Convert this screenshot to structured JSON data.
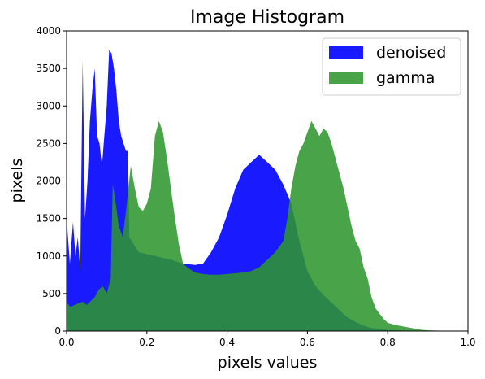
{
  "chart_data": {
    "type": "area",
    "title": "Image Histogram",
    "xlabel": "pixels values",
    "ylabel": "pixels",
    "xlim": [
      0,
      1
    ],
    "ylim": [
      0,
      4000
    ],
    "x_ticks": [
      0.0,
      0.2,
      0.4,
      0.6,
      0.8,
      1.0
    ],
    "x_tick_labels": [
      "0.0",
      "0.2",
      "0.4",
      "0.6",
      "0.8",
      "1.0"
    ],
    "y_ticks": [
      0,
      500,
      1000,
      1500,
      2000,
      2500,
      3000,
      3500,
      4000
    ],
    "y_tick_labels": [
      "0",
      "500",
      "1000",
      "1500",
      "2000",
      "2500",
      "3000",
      "3500",
      "4000"
    ],
    "grid": false,
    "legend": {
      "position": "top-right"
    },
    "series": [
      {
        "name": "denoised",
        "color": "#1a1aff",
        "opacity": 1.0,
        "points": [
          [
            0.0,
            1500
          ],
          [
            0.008,
            900
          ],
          [
            0.016,
            1450
          ],
          [
            0.022,
            1000
          ],
          [
            0.028,
            1250
          ],
          [
            0.034,
            800
          ],
          [
            0.04,
            3600
          ],
          [
            0.046,
            1500
          ],
          [
            0.052,
            2000
          ],
          [
            0.058,
            2800
          ],
          [
            0.064,
            3200
          ],
          [
            0.07,
            3500
          ],
          [
            0.076,
            2600
          ],
          [
            0.082,
            2500
          ],
          [
            0.088,
            2200
          ],
          [
            0.094,
            2600
          ],
          [
            0.1,
            3000
          ],
          [
            0.106,
            3750
          ],
          [
            0.112,
            3700
          ],
          [
            0.118,
            3500
          ],
          [
            0.124,
            3200
          ],
          [
            0.13,
            2800
          ],
          [
            0.136,
            2600
          ],
          [
            0.142,
            2500
          ],
          [
            0.148,
            2400
          ],
          [
            0.153,
            2400
          ],
          [
            0.156,
            1250
          ],
          [
            0.18,
            1050
          ],
          [
            0.22,
            1000
          ],
          [
            0.26,
            950
          ],
          [
            0.29,
            900
          ],
          [
            0.32,
            880
          ],
          [
            0.34,
            900
          ],
          [
            0.36,
            1050
          ],
          [
            0.38,
            1250
          ],
          [
            0.4,
            1550
          ],
          [
            0.42,
            1900
          ],
          [
            0.44,
            2150
          ],
          [
            0.46,
            2250
          ],
          [
            0.48,
            2350
          ],
          [
            0.5,
            2250
          ],
          [
            0.52,
            2150
          ],
          [
            0.54,
            1950
          ],
          [
            0.56,
            1700
          ],
          [
            0.58,
            1200
          ],
          [
            0.6,
            800
          ],
          [
            0.62,
            600
          ],
          [
            0.64,
            480
          ],
          [
            0.66,
            380
          ],
          [
            0.68,
            280
          ],
          [
            0.7,
            180
          ],
          [
            0.72,
            120
          ],
          [
            0.74,
            70
          ],
          [
            0.76,
            40
          ],
          [
            0.8,
            15
          ],
          [
            0.85,
            5
          ],
          [
            0.9,
            2
          ],
          [
            1.0,
            0
          ]
        ]
      },
      {
        "name": "gamma",
        "color": "#2e962e",
        "opacity": 0.87,
        "points": [
          [
            0.0,
            380
          ],
          [
            0.01,
            320
          ],
          [
            0.02,
            350
          ],
          [
            0.03,
            370
          ],
          [
            0.04,
            390
          ],
          [
            0.05,
            350
          ],
          [
            0.06,
            400
          ],
          [
            0.07,
            450
          ],
          [
            0.08,
            550
          ],
          [
            0.09,
            600
          ],
          [
            0.1,
            500
          ],
          [
            0.11,
            700
          ],
          [
            0.115,
            1950
          ],
          [
            0.12,
            1800
          ],
          [
            0.13,
            1400
          ],
          [
            0.14,
            1250
          ],
          [
            0.15,
            1700
          ],
          [
            0.16,
            2200
          ],
          [
            0.17,
            1900
          ],
          [
            0.18,
            1650
          ],
          [
            0.19,
            1600
          ],
          [
            0.2,
            1700
          ],
          [
            0.21,
            1900
          ],
          [
            0.22,
            2600
          ],
          [
            0.23,
            2800
          ],
          [
            0.24,
            2650
          ],
          [
            0.25,
            2300
          ],
          [
            0.26,
            1900
          ],
          [
            0.27,
            1500
          ],
          [
            0.28,
            1150
          ],
          [
            0.29,
            900
          ],
          [
            0.3,
            850
          ],
          [
            0.32,
            780
          ],
          [
            0.34,
            760
          ],
          [
            0.36,
            750
          ],
          [
            0.38,
            750
          ],
          [
            0.4,
            760
          ],
          [
            0.42,
            770
          ],
          [
            0.44,
            780
          ],
          [
            0.46,
            800
          ],
          [
            0.48,
            850
          ],
          [
            0.5,
            950
          ],
          [
            0.52,
            1050
          ],
          [
            0.54,
            1200
          ],
          [
            0.55,
            1500
          ],
          [
            0.56,
            1900
          ],
          [
            0.57,
            2200
          ],
          [
            0.58,
            2400
          ],
          [
            0.59,
            2500
          ],
          [
            0.6,
            2650
          ],
          [
            0.61,
            2800
          ],
          [
            0.62,
            2700
          ],
          [
            0.63,
            2600
          ],
          [
            0.64,
            2700
          ],
          [
            0.65,
            2650
          ],
          [
            0.66,
            2500
          ],
          [
            0.67,
            2300
          ],
          [
            0.68,
            2100
          ],
          [
            0.69,
            1900
          ],
          [
            0.7,
            1650
          ],
          [
            0.71,
            1400
          ],
          [
            0.72,
            1200
          ],
          [
            0.73,
            1100
          ],
          [
            0.74,
            850
          ],
          [
            0.75,
            700
          ],
          [
            0.76,
            450
          ],
          [
            0.77,
            300
          ],
          [
            0.78,
            230
          ],
          [
            0.79,
            160
          ],
          [
            0.8,
            110
          ],
          [
            0.82,
            80
          ],
          [
            0.84,
            60
          ],
          [
            0.86,
            40
          ],
          [
            0.88,
            20
          ],
          [
            0.9,
            10
          ],
          [
            0.93,
            5
          ],
          [
            0.96,
            2
          ],
          [
            1.0,
            0
          ]
        ]
      }
    ]
  }
}
